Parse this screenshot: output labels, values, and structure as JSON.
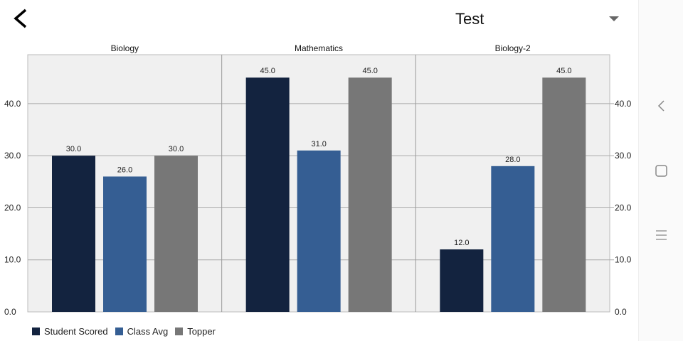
{
  "header": {
    "title": "Test",
    "back_icon": "back-arrow-icon",
    "dropdown_icon": "dropdown-caret-icon"
  },
  "chart_data": {
    "type": "bar",
    "categories": [
      "Biology",
      "Mathematics",
      "Biology-2"
    ],
    "series": [
      {
        "name": "Student Scored",
        "color": "#13233f",
        "values": [
          30.0,
          45.0,
          12.0
        ]
      },
      {
        "name": "Class Avg",
        "color": "#355e93",
        "values": [
          26.0,
          31.0,
          28.0
        ]
      },
      {
        "name": "Topper",
        "color": "#777777",
        "values": [
          30.0,
          45.0,
          45.0
        ]
      }
    ],
    "ylim": [
      0,
      49.4
    ],
    "yticks": [
      "0.0",
      "10.0",
      "20.0",
      "30.0",
      "40.0"
    ],
    "ytick_values": [
      0,
      10,
      20,
      30,
      40
    ],
    "grid": true,
    "legend": "bottom-left",
    "plot_bg": "#f0f0f0"
  },
  "nav": {
    "back": "nav-back-icon",
    "home": "nav-home-icon",
    "recents": "nav-recents-icon"
  }
}
